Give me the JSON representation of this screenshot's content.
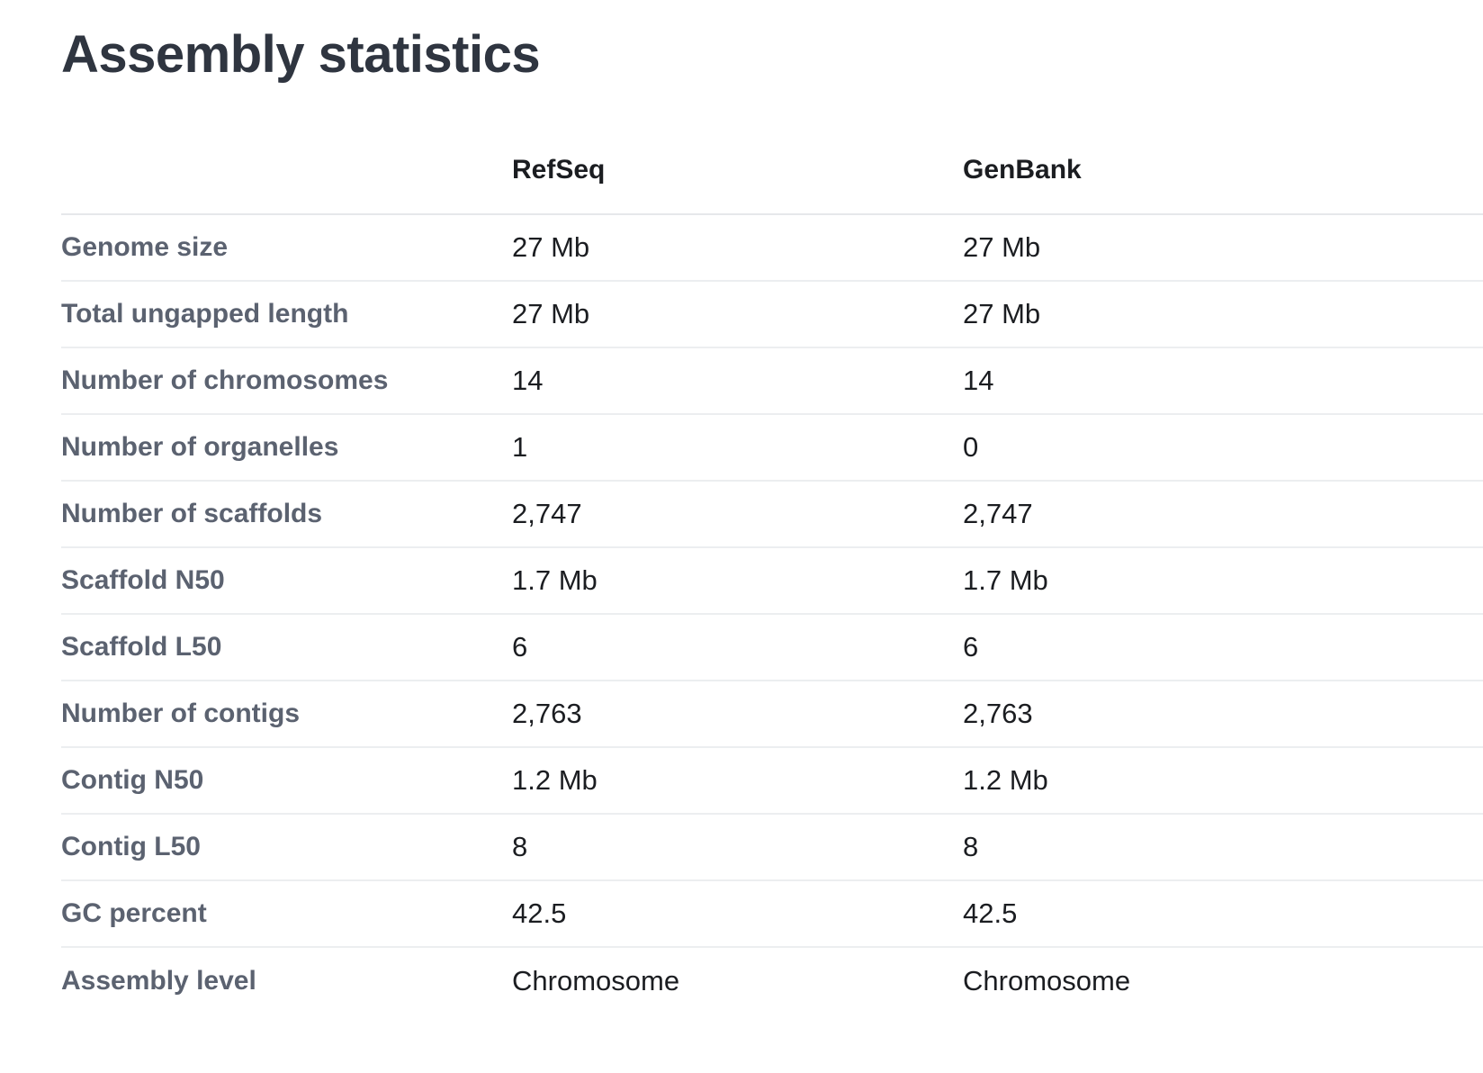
{
  "page": {
    "title": "Assembly statistics"
  },
  "table": {
    "headers": {
      "label": "",
      "refseq": "RefSeq",
      "genbank": "GenBank"
    },
    "rows": [
      {
        "label": "Genome size",
        "refseq": "27 Mb",
        "genbank": "27 Mb"
      },
      {
        "label": "Total ungapped length",
        "refseq": "27 Mb",
        "genbank": "27 Mb"
      },
      {
        "label": "Number of chromosomes",
        "refseq": "14",
        "genbank": "14"
      },
      {
        "label": "Number of organelles",
        "refseq": "1",
        "genbank": "0"
      },
      {
        "label": "Number of scaffolds",
        "refseq": "2,747",
        "genbank": "2,747"
      },
      {
        "label": "Scaffold N50",
        "refseq": "1.7 Mb",
        "genbank": "1.7 Mb"
      },
      {
        "label": "Scaffold L50",
        "refseq": "6",
        "genbank": "6"
      },
      {
        "label": "Number of contigs",
        "refseq": "2,763",
        "genbank": "2,763"
      },
      {
        "label": "Contig N50",
        "refseq": "1.2 Mb",
        "genbank": "1.2 Mb"
      },
      {
        "label": "Contig L50",
        "refseq": "8",
        "genbank": "8"
      },
      {
        "label": "GC percent",
        "refseq": "42.5",
        "genbank": "42.5"
      },
      {
        "label": "Assembly level",
        "refseq": "Chromosome",
        "genbank": "Chromosome"
      }
    ]
  }
}
